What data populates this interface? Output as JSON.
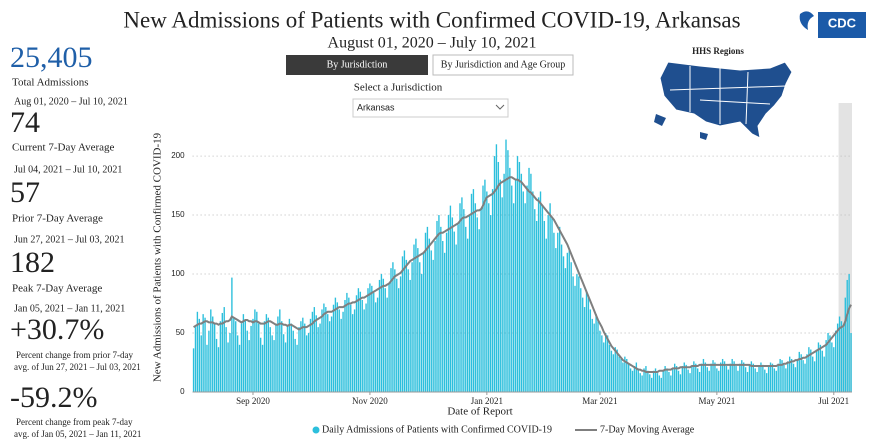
{
  "header": {
    "title": "New Admissions of Patients with Confirmed COVID-19, Arkansas",
    "subtitle": "August 01, 2020 – July 10, 2021",
    "logo": "CDC"
  },
  "kpis": [
    {
      "value": "25,405",
      "label": "Total Admissions",
      "note": "Aug 01, 2020 – Jul 10, 2021"
    },
    {
      "value": "74",
      "label": "Current 7-Day Average",
      "note": "Jul 04, 2021 – Jul 10, 2021"
    },
    {
      "value": "57",
      "label": "Prior 7-Day Average",
      "note": "Jun 27, 2021 – Jul 03, 2021"
    },
    {
      "value": "182",
      "label": "Peak 7-Day Average",
      "note": "Jan 05, 2021 – Jan 11, 2021"
    },
    {
      "value": "+30.7%",
      "label": "Percent change from prior 7-day",
      "note": "avg. of Jun 27, 2021 – Jul 03, 2021"
    },
    {
      "value": "-59.2%",
      "label": "Percent change from peak 7-day",
      "note": "avg. of Jan 05, 2021 – Jan 11, 2021"
    }
  ],
  "controls": {
    "tabs": [
      "By Jurisdiction",
      "By Jurisdiction and Age Group"
    ],
    "select_label": "Select a Jurisdiction",
    "selected": "Arkansas",
    "map_title": "HHS Regions"
  },
  "chart_data": {
    "type": "bar",
    "ylabel": "New Admissions of Patients with Confirmed COVID-19",
    "xlabel": "Date of Report",
    "xlim": [
      -0.5,
      343.5
    ],
    "xticks": [
      {
        "value": 31,
        "label": "Sep 2020"
      },
      {
        "value": 92,
        "label": "Nov 2020"
      },
      {
        "value": 153,
        "label": "Jan 2021"
      },
      {
        "value": 212,
        "label": "Mar 2021"
      },
      {
        "value": 273,
        "label": "May 2021"
      },
      {
        "value": 334,
        "label": "Jul 2021"
      }
    ],
    "ylim": [
      0,
      245
    ],
    "yticks": [
      0,
      50,
      100,
      150,
      200
    ],
    "grid": true,
    "highlight_xlim": [
      336.5,
      343.5
    ],
    "highlight_color": "#e3e3e3",
    "series": [
      {
        "name": "Daily Admissions of Patients with Confirmed COVID-19",
        "color": "#2cbfdc",
        "values": [
          37,
          55,
          68,
          62,
          48,
          66,
          63,
          40,
          52,
          70,
          64,
          58,
          45,
          38,
          60,
          67,
          72,
          55,
          42,
          50,
          97,
          63,
          60,
          48,
          40,
          58,
          66,
          61,
          52,
          44,
          56,
          62,
          70,
          68,
          58,
          46,
          40,
          60,
          66,
          63,
          55,
          48,
          44,
          58,
          64,
          70,
          60,
          49,
          42,
          57,
          62,
          58,
          52,
          45,
          40,
          55,
          60,
          63,
          58,
          48,
          50,
          62,
          68,
          72,
          65,
          55,
          58,
          70,
          75,
          72,
          66,
          60,
          64,
          74,
          80,
          76,
          70,
          62,
          68,
          78,
          84,
          80,
          74,
          66,
          70,
          82,
          88,
          85,
          78,
          70,
          75,
          88,
          92,
          90,
          84,
          76,
          80,
          95,
          100,
          96,
          88,
          80,
          92,
          105,
          110,
          104,
          96,
          88,
          98,
          115,
          120,
          112,
          104,
          95,
          110,
          125,
          130,
          122,
          110,
          100,
          118,
          135,
          140,
          130,
          120,
          112,
          128,
          145,
          150,
          140,
          128,
          118,
          135,
          150,
          158,
          148,
          136,
          125,
          142,
          160,
          165,
          155,
          140,
          130,
          150,
          168,
          172,
          160,
          148,
          138,
          155,
          175,
          180,
          170,
          160,
          150,
          172,
          200,
          210,
          195,
          180,
          165,
          185,
          214,
          205,
          190,
          175,
          160,
          180,
          200,
          195,
          185,
          170,
          160,
          175,
          190,
          185,
          170,
          155,
          145,
          165,
          170,
          158,
          145,
          130,
          150,
          160,
          148,
          135,
          122,
          135,
          140,
          125,
          115,
          105,
          118,
          120,
          110,
          98,
          90,
          100,
          98,
          88,
          80,
          72,
          85,
          80,
          70,
          62,
          58,
          66,
          60,
          52,
          48,
          42,
          50,
          48,
          40,
          35,
          32,
          38,
          36,
          30,
          28,
          25,
          30,
          28,
          24,
          20,
          18,
          22,
          25,
          20,
          16,
          14,
          20,
          22,
          18,
          15,
          12,
          18,
          20,
          16,
          14,
          12,
          18,
          22,
          20,
          17,
          14,
          20,
          24,
          22,
          18,
          15,
          22,
          25,
          23,
          19,
          16,
          22,
          26,
          24,
          20,
          17,
          24,
          28,
          25,
          21,
          18,
          24,
          27,
          25,
          20,
          18,
          25,
          28,
          26,
          22,
          19,
          24,
          28,
          26,
          22,
          18,
          24,
          27,
          25,
          21,
          17,
          23,
          26,
          24,
          20,
          17,
          22,
          25,
          23,
          19,
          16,
          22,
          25,
          24,
          20,
          18,
          24,
          28,
          27,
          23,
          20,
          26,
          30,
          28,
          24,
          21,
          28,
          34,
          32,
          27,
          24,
          32,
          38,
          36,
          30,
          26,
          36,
          42,
          40,
          35,
          30,
          44,
          50,
          48,
          42,
          38,
          52,
          58,
          64,
          60,
          55,
          80,
          95,
          100,
          50
        ]
      },
      {
        "name": "7-Day Moving Average",
        "type": "line",
        "color": "#7f7f7f",
        "values": [
          55,
          56,
          57,
          58,
          58,
          59,
          60,
          60,
          59,
          59,
          59,
          58,
          58,
          57,
          58,
          58,
          59,
          60,
          60,
          61,
          64,
          63,
          62,
          61,
          60,
          59,
          60,
          61,
          61,
          60,
          60,
          59,
          60,
          60,
          59,
          58,
          58,
          58,
          59,
          60,
          60,
          59,
          58,
          57,
          57,
          58,
          58,
          57,
          57,
          56,
          57,
          57,
          56,
          55,
          54,
          53,
          54,
          55,
          55,
          55,
          56,
          57,
          58,
          60,
          61,
          62,
          63,
          64,
          66,
          67,
          68,
          68,
          68,
          69,
          70,
          71,
          72,
          72,
          72,
          73,
          74,
          75,
          75,
          76,
          76,
          77,
          78,
          79,
          80,
          80,
          81,
          82,
          83,
          84,
          85,
          86,
          87,
          88,
          89,
          90,
          90,
          91,
          92,
          94,
          96,
          98,
          99,
          100,
          101,
          103,
          105,
          107,
          109,
          111,
          112,
          113,
          114,
          115,
          116,
          117,
          118,
          120,
          122,
          124,
          126,
          128,
          130,
          132,
          134,
          135,
          135,
          136,
          137,
          138,
          139,
          140,
          141,
          142,
          143,
          145,
          147,
          148,
          148,
          149,
          150,
          151,
          152,
          153,
          154,
          154,
          155,
          158,
          162,
          165,
          166,
          167,
          168,
          170,
          172,
          175,
          177,
          178,
          179,
          180,
          181,
          182,
          182,
          181,
          180,
          180,
          179,
          178,
          176,
          174,
          172,
          170,
          169,
          167,
          165,
          163,
          162,
          160,
          158,
          156,
          154,
          152,
          150,
          148,
          146,
          143,
          140,
          137,
          134,
          131,
          128,
          125,
          121,
          117,
          113,
          109,
          105,
          101,
          97,
          93,
          89,
          85,
          81,
          77,
          73,
          69,
          65,
          61,
          58,
          55,
          51,
          48,
          45,
          42,
          39,
          37,
          35,
          33,
          31,
          29,
          27,
          26,
          25,
          24,
          23,
          22,
          21,
          20,
          19,
          19,
          18,
          18,
          17,
          17,
          17,
          17,
          17,
          17,
          17,
          18,
          18,
          18,
          19,
          19,
          19,
          19,
          20,
          20,
          20,
          20,
          21,
          21,
          21,
          21,
          21,
          21,
          22,
          22,
          22,
          22,
          23,
          23,
          23,
          23,
          23,
          23,
          23,
          23,
          23,
          23,
          23,
          23,
          23,
          23,
          23,
          23,
          23,
          23,
          23,
          23,
          23,
          23,
          23,
          23,
          23,
          23,
          23,
          22,
          22,
          22,
          22,
          22,
          22,
          22,
          22,
          22,
          22,
          22,
          22,
          22,
          22,
          23,
          23,
          23,
          24,
          24,
          25,
          25,
          26,
          26,
          27,
          27,
          28,
          28,
          29,
          29,
          30,
          31,
          32,
          33,
          34,
          35,
          36,
          37,
          38,
          39,
          40,
          42,
          44,
          46,
          48,
          50,
          52,
          54,
          55,
          56,
          60,
          66,
          71,
          74
        ]
      }
    ]
  }
}
